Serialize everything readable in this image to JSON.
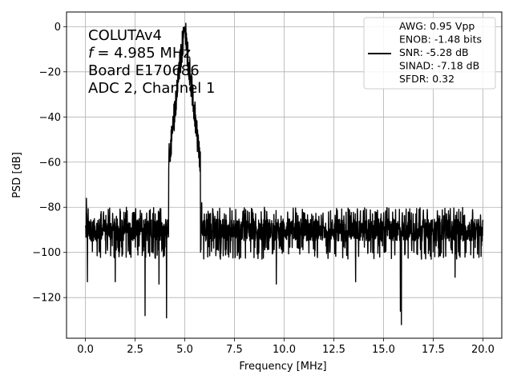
{
  "chart_data": {
    "type": "line",
    "title": "",
    "xlabel": "Frequency [MHz]",
    "ylabel": "PSD [dB]",
    "xlim": [
      -0.95,
      20.95
    ],
    "ylim": [
      -138,
      6.5
    ],
    "xticks": [
      0.0,
      2.5,
      5.0,
      7.5,
      10.0,
      12.5,
      15.0,
      17.5,
      20.0
    ],
    "xtick_labels": [
      "0.0",
      "2.5",
      "5.0",
      "7.5",
      "10.0",
      "12.5",
      "15.0",
      "17.5",
      "20.0"
    ],
    "yticks": [
      0,
      -20,
      -40,
      -60,
      -80,
      -100,
      -120
    ],
    "ytick_labels": [
      "0",
      "−20",
      "−40",
      "−60",
      "−80",
      "−100",
      "−120"
    ],
    "grid": true,
    "annotation_lines": [
      "COLUTAv4",
      "= 4.985 MHz",
      "Board E170686",
      "ADC 2, Channel 1"
    ],
    "annotation_italic_prefix": "f",
    "legend": {
      "location": "top-right",
      "lines": [
        "AWG: 0.95 Vpp",
        "ENOB: -1.48 bits",
        "SNR: -5.28 dB",
        "SINAD: -7.18 dB",
        "SFDR: 0.32"
      ]
    },
    "series": [
      {
        "color": "#000000",
        "noise_floor_db": -90,
        "noise_band_db": [
          -103,
          -80
        ],
        "x_range": [
          0.0,
          20.0
        ],
        "peak": {
          "x": 4.985,
          "y": 0
        },
        "deep_dips": [
          {
            "x": 0.1,
            "y": -113
          },
          {
            "x": 3.0,
            "y": -128
          },
          {
            "x": 4.08,
            "y": -129
          },
          {
            "x": 15.9,
            "y": -132
          },
          {
            "x": 15.85,
            "y": -126
          },
          {
            "x": 1.5,
            "y": -113
          },
          {
            "x": 3.7,
            "y": -114
          },
          {
            "x": 9.6,
            "y": -114
          },
          {
            "x": 13.6,
            "y": -113
          },
          {
            "x": 18.6,
            "y": -111
          }
        ],
        "spikes": [
          {
            "x": 0.05,
            "y": -76
          },
          {
            "x": 5.85,
            "y": -78
          }
        ]
      }
    ]
  }
}
